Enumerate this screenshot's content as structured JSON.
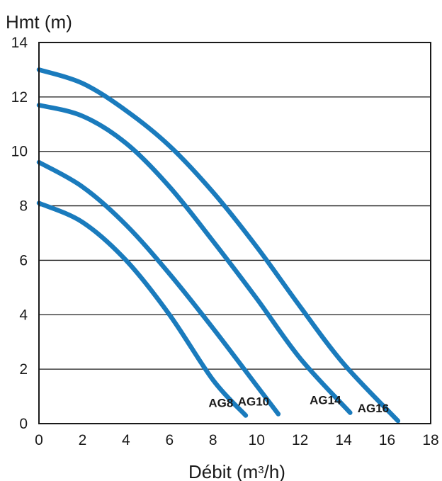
{
  "chart_data": {
    "type": "line",
    "ylabel": "Hmt (m)",
    "xlabel_main": "Débit (m",
    "xlabel_sup": "3",
    "xlabel_end": "/h)",
    "xlim": [
      0,
      18
    ],
    "ylim": [
      0,
      14
    ],
    "xticks": [
      0,
      2,
      4,
      6,
      8,
      10,
      12,
      14,
      16,
      18
    ],
    "yticks": [
      0,
      2,
      4,
      6,
      8,
      10,
      12,
      14
    ],
    "grid": "horizontal",
    "line_color": "#1a7bbd",
    "series": [
      {
        "name": "AG8",
        "x": [
          0,
          2,
          4,
          6,
          8,
          9.5
        ],
        "y": [
          8.1,
          7.4,
          6.0,
          4.0,
          1.6,
          0.3
        ]
      },
      {
        "name": "AG10",
        "x": [
          0,
          2,
          4,
          6,
          8,
          10,
          11
        ],
        "y": [
          9.6,
          8.7,
          7.3,
          5.5,
          3.5,
          1.4,
          0.35
        ]
      },
      {
        "name": "AG14",
        "x": [
          0,
          2,
          4,
          6,
          8,
          10,
          12,
          14.3
        ],
        "y": [
          11.7,
          11.3,
          10.3,
          8.7,
          6.7,
          4.6,
          2.4,
          0.4
        ]
      },
      {
        "name": "AG16",
        "x": [
          0,
          2,
          4,
          6,
          8,
          10,
          12,
          14,
          16.5
        ],
        "y": [
          13.0,
          12.5,
          11.5,
          10.2,
          8.5,
          6.5,
          4.3,
          2.2,
          0.1
        ]
      }
    ]
  }
}
